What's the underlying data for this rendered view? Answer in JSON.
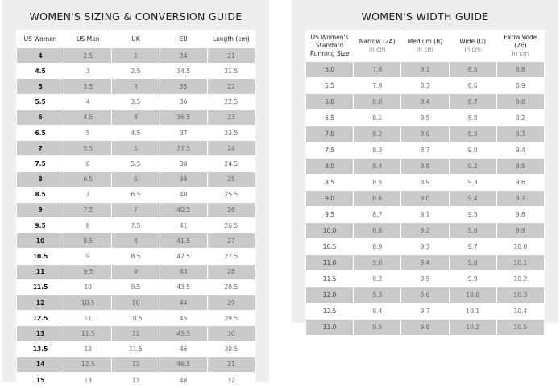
{
  "sizing": {
    "title": "WOMEN'S SIZING & CONVERSION GUIDE",
    "headers": [
      "US Women",
      "US Men",
      "UK",
      "EU",
      "Length (cm)"
    ],
    "rows": [
      [
        "4",
        "2.5",
        "2",
        "34",
        "21"
      ],
      [
        "4.5",
        "3",
        "2.5",
        "34.5",
        "21.5"
      ],
      [
        "5",
        "3.5",
        "3",
        "35",
        "22"
      ],
      [
        "5.5",
        "4",
        "3.5",
        "36",
        "22.5"
      ],
      [
        "6",
        "4.5",
        "4",
        "36.5",
        "23"
      ],
      [
        "6.5",
        "5",
        "4.5",
        "37",
        "23.5"
      ],
      [
        "7",
        "5.5",
        "5",
        "37.5",
        "24"
      ],
      [
        "7.5",
        "6",
        "5.5",
        "38",
        "24.5"
      ],
      [
        "8",
        "6.5",
        "6",
        "39",
        "25"
      ],
      [
        "8.5",
        "7",
        "6.5",
        "40",
        "25.5"
      ],
      [
        "9",
        "7.5",
        "7",
        "40.5",
        "26"
      ],
      [
        "9.5",
        "8",
        "7.5",
        "41",
        "26.5"
      ],
      [
        "10",
        "8.5",
        "8",
        "41.5",
        "27"
      ],
      [
        "10.5",
        "9",
        "8.5",
        "42.5",
        "27.5"
      ],
      [
        "11",
        "9.5",
        "9",
        "43",
        "28"
      ],
      [
        "11.5",
        "10",
        "9.5",
        "43.5",
        "28.5"
      ],
      [
        "12",
        "10.5",
        "10",
        "44",
        "29"
      ],
      [
        "12.5",
        "11",
        "10.5",
        "45",
        "29.5"
      ],
      [
        "13",
        "11.5",
        "11",
        "45.5",
        "30"
      ],
      [
        "13.5",
        "12",
        "11.5",
        "46",
        "30.5"
      ],
      [
        "14",
        "12.5",
        "12",
        "46.5",
        "31"
      ],
      [
        "15",
        "13",
        "13",
        "48",
        "32"
      ]
    ]
  },
  "width": {
    "title": "WOMEN'S WIDTH GUIDE",
    "headers": [
      {
        "label": "US Women's Standard Running Size",
        "sub": ""
      },
      {
        "label": "Narrow (2A)",
        "sub": "in cm"
      },
      {
        "label": "Medium (B)",
        "sub": "in cm"
      },
      {
        "label": "Wide (D)",
        "sub": "in cm"
      },
      {
        "label": "Extra Wide (2E)",
        "sub": "in cm"
      }
    ],
    "rows": [
      [
        "5.0",
        "7.8",
        "8.1",
        "8.5",
        "8.8"
      ],
      [
        "5.5",
        "7.9",
        "8.3",
        "8.6",
        "8.9"
      ],
      [
        "6.0",
        "8.0",
        "8.4",
        "8.7",
        "9.0"
      ],
      [
        "6.5",
        "8.1",
        "8.5",
        "8.8",
        "9.2"
      ],
      [
        "7.0",
        "8.2",
        "8.6",
        "8.9",
        "9.3"
      ],
      [
        "7.5",
        "8.3",
        "8.7",
        "9.0",
        "9.4"
      ],
      [
        "8.0",
        "8.4",
        "8.8",
        "9.2",
        "9.5"
      ],
      [
        "8.5",
        "8.5",
        "8.9",
        "9.3",
        "9.6"
      ],
      [
        "9.0",
        "8.6",
        "9.0",
        "9.4",
        "9.7"
      ],
      [
        "9.5",
        "8.7",
        "9.1",
        "9.5",
        "9.8"
      ],
      [
        "10.0",
        "8.8",
        "9.2",
        "9.6",
        "9.9"
      ],
      [
        "10.5",
        "8.9",
        "9.3",
        "9.7",
        "10.0"
      ],
      [
        "11.0",
        "9.0",
        "9.4",
        "9.8",
        "10.1"
      ],
      [
        "11.5",
        "9.2",
        "9.5",
        "9.9",
        "10.2"
      ],
      [
        "12.0",
        "9.3",
        "9.6",
        "10.0",
        "10.3"
      ],
      [
        "12.5",
        "9.4",
        "9.7",
        "10.1",
        "10.4"
      ],
      [
        "13.0",
        "9.5",
        "9.8",
        "10.2",
        "10.5"
      ]
    ]
  },
  "colors": {
    "panel": "#efeded",
    "stripe": "#cacaca"
  }
}
